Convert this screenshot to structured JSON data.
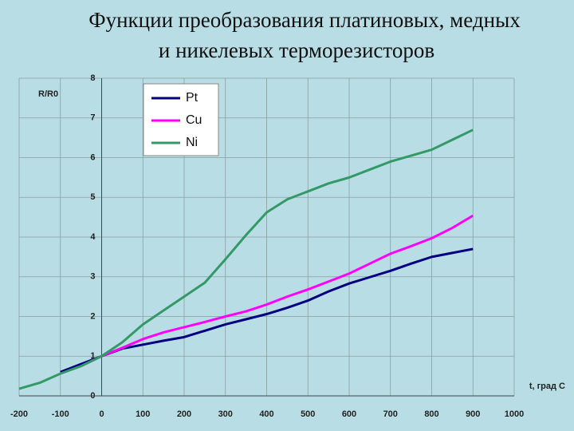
{
  "chart_data": {
    "type": "line",
    "title": [
      "Функции преобразования платиновых, медных",
      "и никелевых терморезисторов"
    ],
    "y_label": "R/R0",
    "x_label": "t, град С",
    "x": [
      -200,
      -150,
      -100,
      -50,
      0,
      50,
      100,
      150,
      200,
      250,
      300,
      350,
      400,
      450,
      500,
      550,
      600,
      650,
      700,
      750,
      800,
      850,
      900
    ],
    "series": [
      {
        "name": "Pt",
        "color": "#000080",
        "values": [
          null,
          null,
          0.6,
          0.8,
          1.0,
          1.19,
          1.29,
          1.39,
          1.48,
          1.64,
          1.8,
          1.93,
          2.06,
          2.22,
          2.4,
          2.63,
          2.83,
          2.99,
          3.15,
          3.33,
          3.5,
          3.6,
          3.7
        ]
      },
      {
        "name": "Cu",
        "color": "#ff00ff",
        "values": [
          null,
          null,
          null,
          0.75,
          1.0,
          1.21,
          1.43,
          1.6,
          1.73,
          1.86,
          2.0,
          2.13,
          2.3,
          2.5,
          2.68,
          2.88,
          3.08,
          3.33,
          3.58,
          3.77,
          3.97,
          4.23,
          4.54
        ]
      },
      {
        "name": "Ni",
        "color": "#339966",
        "values": [
          0.18,
          0.33,
          0.56,
          0.75,
          1.0,
          1.35,
          1.8,
          2.15,
          2.5,
          2.85,
          3.44,
          4.05,
          4.62,
          4.95,
          5.15,
          5.35,
          5.5,
          5.7,
          5.9,
          6.05,
          6.2,
          6.45,
          6.7
        ]
      }
    ],
    "xlim": [
      -200,
      1000
    ],
    "ylim": [
      0,
      8
    ],
    "xticks": [
      -200,
      -100,
      0,
      100,
      200,
      300,
      400,
      500,
      600,
      700,
      800,
      900,
      1000
    ],
    "yticks": [
      0,
      1,
      2,
      3,
      4,
      5,
      6,
      7,
      8
    ],
    "grid": true,
    "legend": "upper left"
  }
}
